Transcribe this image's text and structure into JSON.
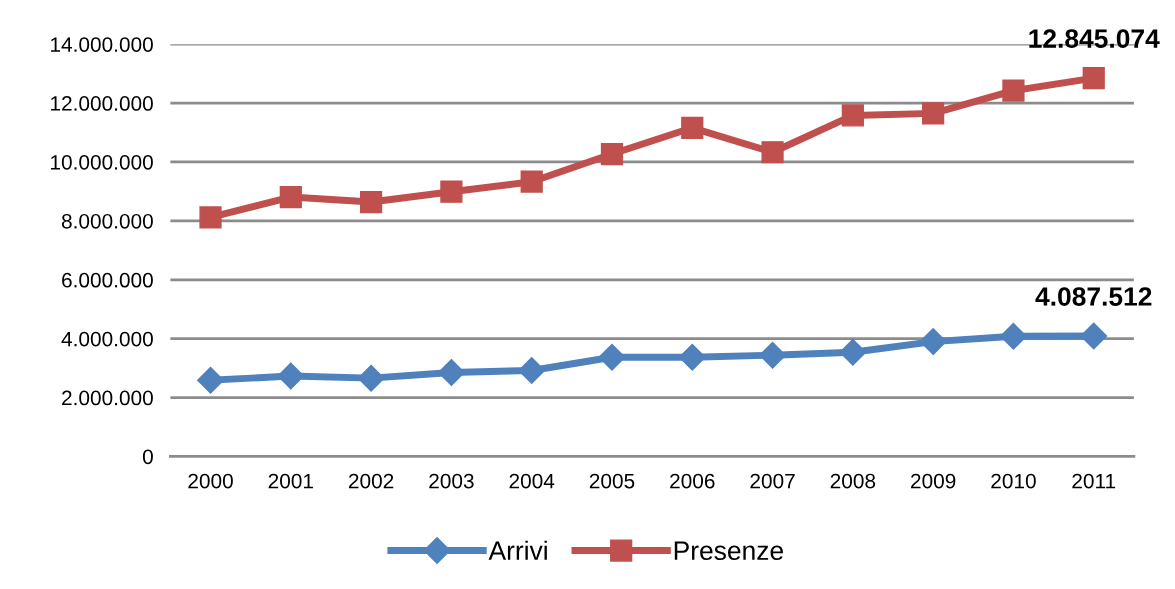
{
  "chart_data": {
    "type": "line",
    "categories": [
      "2000",
      "2001",
      "2002",
      "2003",
      "2004",
      "2005",
      "2006",
      "2007",
      "2008",
      "2009",
      "2010",
      "2011"
    ],
    "series": [
      {
        "name": "Arrivi",
        "color": "#4f81bd",
        "marker": "diamond",
        "values": [
          2590000,
          2730000,
          2660000,
          2850000,
          2920000,
          3370000,
          3370000,
          3440000,
          3540000,
          3900000,
          4080000,
          4087512
        ]
      },
      {
        "name": "Presenze",
        "color": "#c0504d",
        "marker": "square",
        "values": [
          8120000,
          8810000,
          8640000,
          8990000,
          9330000,
          10270000,
          11160000,
          10330000,
          11580000,
          11650000,
          12420000,
          12845074
        ]
      }
    ],
    "ylim": [
      0,
      14000000
    ],
    "yticks": [
      {
        "value": 0,
        "label": "0"
      },
      {
        "value": 2000000,
        "label": "2.000.000"
      },
      {
        "value": 4000000,
        "label": "4.000.000"
      },
      {
        "value": 6000000,
        "label": "6.000.000"
      },
      {
        "value": 8000000,
        "label": "8.000.000"
      },
      {
        "value": 10000000,
        "label": "10.000.000"
      },
      {
        "value": 12000000,
        "label": "12.000.000"
      },
      {
        "value": 14000000,
        "label": "14.000.000"
      }
    ],
    "annotations": [
      {
        "text": "4.087.512",
        "x": "2011",
        "y": 4087512
      },
      {
        "text": "12.845.074",
        "x": "2011",
        "y": 12845074
      }
    ],
    "grid": "y",
    "legend": "bottom",
    "line_style": "solid"
  }
}
